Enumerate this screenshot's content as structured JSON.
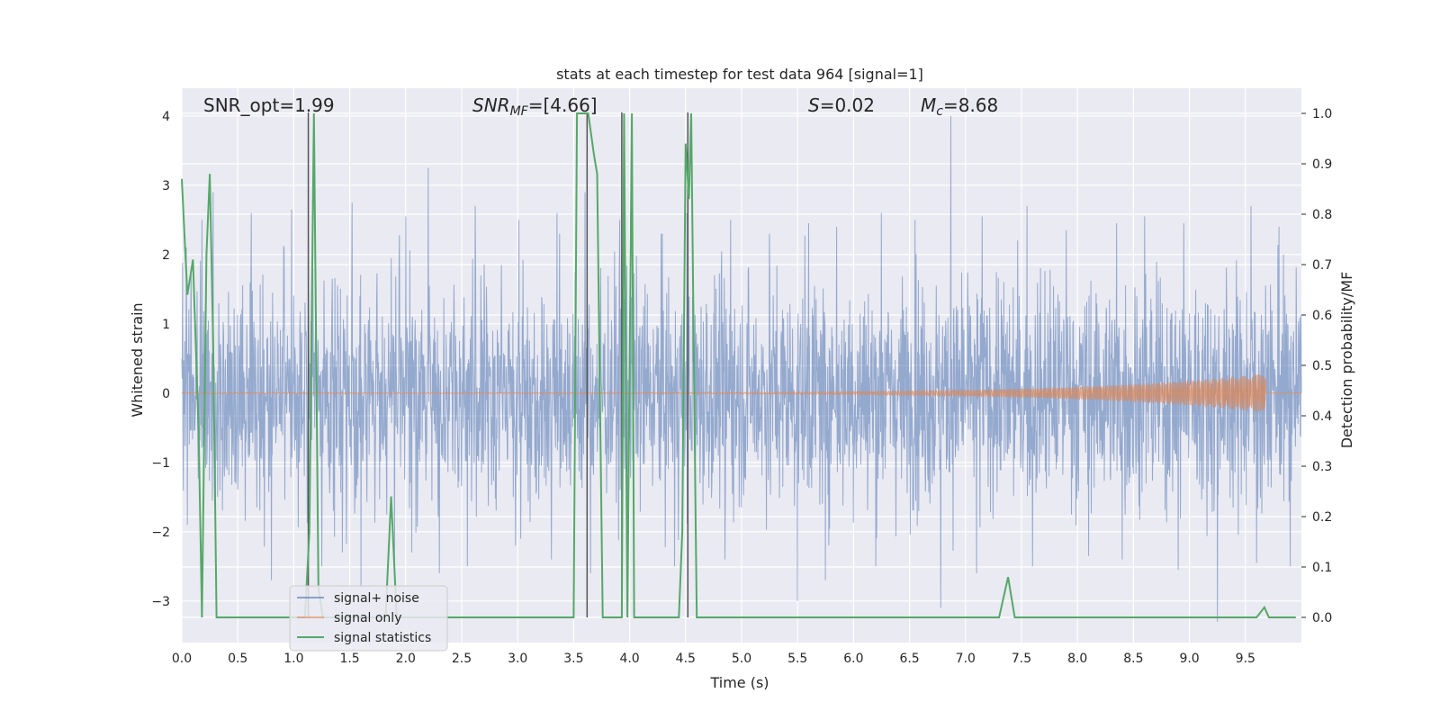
{
  "chart_data": {
    "type": "line",
    "title": "stats at each timestep for test data 964 [signal=1]",
    "xlabel": "Time (s)",
    "ylabel_left": "Whitened strain",
    "ylabel_right": "Detection probability/MF",
    "xlim": [
      0.0,
      10.0
    ],
    "ylim_left": [
      -3.6,
      4.4
    ],
    "ylim_right": [
      -0.05,
      1.05
    ],
    "x_ticks": [
      "0.0",
      "0.5",
      "1.0",
      "1.5",
      "2.0",
      "2.5",
      "3.0",
      "3.5",
      "4.0",
      "4.5",
      "5.0",
      "5.5",
      "6.0",
      "6.5",
      "7.0",
      "7.5",
      "8.0",
      "8.5",
      "9.0",
      "9.5"
    ],
    "y_ticks_left": [
      "−3",
      "−2",
      "−1",
      "0",
      "1",
      "2",
      "3",
      "4"
    ],
    "y_ticks_right": [
      "0.0",
      "0.1",
      "0.2",
      "0.3",
      "0.4",
      "0.5",
      "0.6",
      "0.7",
      "0.8",
      "0.9",
      "1.0"
    ],
    "annotations": {
      "snr_opt": "SNR_opt=1.99",
      "snr_mf_main": "SNR",
      "snr_mf_sub": "MF",
      "snr_mf_val": "=[4.66]",
      "s_main": "S",
      "s_val": "=0.02",
      "mc_main": "M",
      "mc_sub": "c",
      "mc_val": "=8.68"
    },
    "legend": {
      "position": "lower-left",
      "entries": [
        "signal+ noise",
        "signal only",
        "signal statistics"
      ]
    },
    "colors": {
      "noise": "#4c72b0",
      "signal": "#dd8452",
      "stats": "#55a868",
      "markers": "#555555",
      "background": "#eaeaf2",
      "grid": "#ffffff"
    },
    "series": [
      {
        "name": "signal statistics",
        "axis": "right",
        "x": [
          0.0,
          0.05,
          0.1,
          0.15,
          0.18,
          0.22,
          0.25,
          0.28,
          0.31,
          1.1,
          1.14,
          1.18,
          1.22,
          1.26,
          1.6,
          1.82,
          1.87,
          1.92,
          3.5,
          3.53,
          3.57,
          3.63,
          3.68,
          3.71,
          3.76,
          3.93,
          3.95,
          3.98,
          4.02,
          4.04,
          4.06,
          4.44,
          4.47,
          4.5,
          4.53,
          4.55,
          4.59,
          4.6,
          7.3,
          7.38,
          7.44,
          9.6,
          9.67,
          9.71,
          9.95
        ],
        "y": [
          0.87,
          0.64,
          0.71,
          0.37,
          0.0,
          0.72,
          0.88,
          0.55,
          0.0,
          0.0,
          0.17,
          1.0,
          0.06,
          0.0,
          0.0,
          0.0,
          0.24,
          0.0,
          0.0,
          1.0,
          1.0,
          1.0,
          0.92,
          0.88,
          0.0,
          0.0,
          1.0,
          0.0,
          1.0,
          0.0,
          0.0,
          0.0,
          0.17,
          0.94,
          0.83,
          1.0,
          0.18,
          0.0,
          0.0,
          0.08,
          0.0,
          0.0,
          0.02,
          0.0,
          0.0
        ]
      },
      {
        "name": "signal+ noise",
        "axis": "left",
        "peak_x": [
          0.18,
          0.28,
          0.62,
          0.98,
          1.17,
          1.52,
          2.0,
          2.2,
          2.62,
          3.01,
          3.35,
          3.6,
          3.91,
          4.28,
          4.51,
          4.9,
          5.25,
          5.6,
          5.85,
          6.25,
          6.55,
          6.87,
          7.15,
          7.55,
          7.9,
          8.35,
          8.6,
          8.95,
          9.25,
          9.55,
          9.8
        ],
        "peak_y": [
          2.5,
          2.9,
          2.6,
          2.65,
          1.8,
          2.75,
          2.55,
          3.25,
          2.7,
          2.5,
          2.6,
          2.9,
          2.5,
          2.3,
          2.6,
          2.5,
          2.3,
          2.45,
          2.4,
          2.6,
          2.5,
          4.0,
          2.55,
          2.7,
          2.35,
          2.45,
          2.55,
          2.45,
          2.5,
          2.7,
          2.4
        ],
        "trough_x": [
          0.05,
          0.3,
          0.8,
          1.25,
          1.6,
          1.9,
          2.3,
          2.55,
          2.98,
          3.3,
          3.65,
          3.98,
          4.4,
          4.85,
          5.5,
          5.75,
          6.2,
          6.78,
          7.1,
          7.6,
          8.1,
          8.4,
          8.9,
          9.25,
          9.6,
          9.9
        ],
        "trough_y": [
          -1.9,
          -2.1,
          -2.7,
          -2.5,
          -2.8,
          -2.5,
          -2.6,
          -2.5,
          -2.2,
          -2.4,
          -2.6,
          -2.45,
          -2.5,
          -2.4,
          -3.0,
          -2.7,
          -2.5,
          -3.1,
          -2.6,
          -2.5,
          -2.35,
          -2.4,
          -2.55,
          -3.3,
          -2.45,
          -2.5
        ]
      },
      {
        "name": "signal only",
        "axis": "left",
        "x_start": 0.0,
        "x_end": 9.68,
        "amp_start": 0.005,
        "amp_end": 0.28
      }
    ],
    "markers_x": [
      1.13,
      3.62,
      3.93,
      4.52
    ],
    "markers_y": 4.05
  }
}
